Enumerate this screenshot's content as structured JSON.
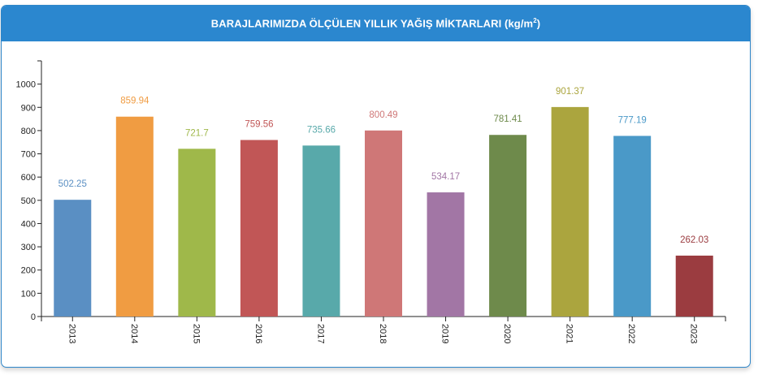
{
  "header": {
    "title_main": "BARAJLARIMIZDA ÖLÇÜLEN YILLIK YAĞIŞ MİKTARLARI (kg/m",
    "title_sup": "2",
    "title_end": ")"
  },
  "chart_data": {
    "type": "bar",
    "title": "BARAJLARIMIZDA ÖLÇÜLEN YILLIK YAĞIŞ MİKTARLARI (kg/m²)",
    "categories": [
      "2013",
      "2014",
      "2015",
      "2016",
      "2017",
      "2018",
      "2019",
      "2020",
      "2021",
      "2022",
      "2023"
    ],
    "values": [
      502.25,
      859.94,
      721.7,
      759.56,
      735.66,
      800.49,
      534.17,
      781.41,
      901.37,
      777.19,
      262.03
    ],
    "value_labels": [
      "502.25",
      "859.94",
      "721.7",
      "759.56",
      "735.66",
      "800.49",
      "534.17",
      "781.41",
      "901.37",
      "777.19",
      "262.03"
    ],
    "colors": [
      "#5a8fc3",
      "#f09c42",
      "#9fb84a",
      "#c15656",
      "#58a9aa",
      "#cf7777",
      "#a276a5",
      "#6e8a4b",
      "#aba53e",
      "#4a99c8",
      "#9b3c40"
    ],
    "label_colors": [
      "#5a8fc3",
      "#f09c42",
      "#9fb84a",
      "#c15656",
      "#58a9aa",
      "#cf7777",
      "#a276a5",
      "#6e8a4b",
      "#aba53e",
      "#4a99c8",
      "#9b3c40"
    ],
    "yticks": [
      "0",
      "100",
      "200",
      "300",
      "400",
      "500",
      "600",
      "700",
      "800",
      "900",
      "1000"
    ],
    "ylim": [
      0,
      1100
    ],
    "grid": false,
    "legend": "none",
    "xlabel": "",
    "ylabel": ""
  }
}
